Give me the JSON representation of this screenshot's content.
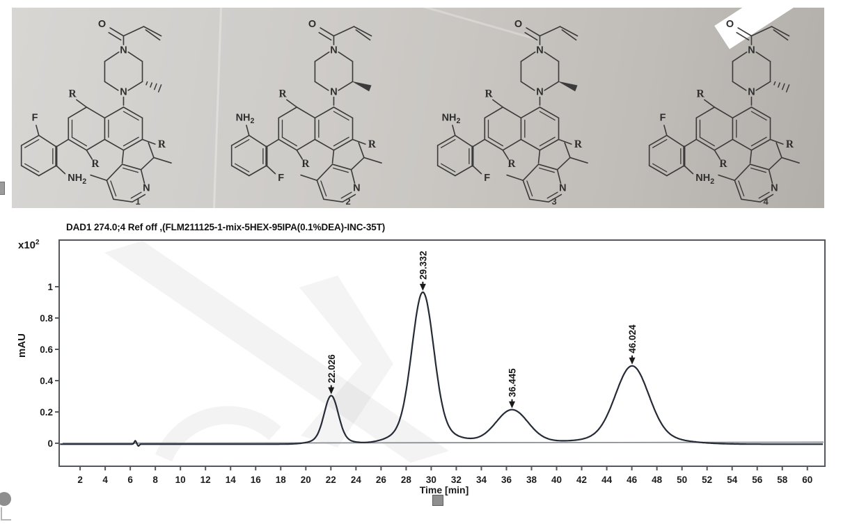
{
  "photo": {
    "atoms": {
      "oxygen": "O",
      "nitrogen": "N",
      "r_group": "R",
      "pyridine_n": "N"
    },
    "compounds": [
      {
        "label": "1",
        "top_substituent": "F",
        "bottom_substituent": "NH2",
        "methyl_stereo": "hash"
      },
      {
        "label": "2",
        "top_substituent": "NH2",
        "bottom_substituent": "F",
        "methyl_stereo": "wedge"
      },
      {
        "label": "3",
        "top_substituent": "NH2",
        "bottom_substituent": "F",
        "methyl_stereo": "wedge"
      },
      {
        "label": "4",
        "top_substituent": "F",
        "bottom_substituent": "NH2",
        "methyl_stereo": "hash"
      }
    ]
  },
  "chart_data": {
    "type": "line",
    "title": "DAD1 274.0;4 Ref off ,(FLM211125-1-mix-5HEX-95IPA(0.1%DEA)-INC-35T)",
    "y_multiplier": {
      "base": "x10",
      "exp": "2"
    },
    "ylabel": "mAU",
    "xlabel": "Time [min]",
    "xlim": [
      0.33,
      61.4
    ],
    "ylim": [
      -0.147,
      1.298
    ],
    "x_ticks": [
      2,
      4,
      6,
      8,
      10,
      12,
      14,
      16,
      18,
      20,
      22,
      24,
      26,
      28,
      30,
      32,
      34,
      36,
      38,
      40,
      42,
      44,
      46,
      48,
      50,
      52,
      54,
      56,
      58,
      60
    ],
    "y_ticks": [
      0,
      0.2,
      0.4,
      0.6,
      0.8,
      1
    ],
    "grid": false,
    "legend": null,
    "baseline_level": 0,
    "peaks": [
      {
        "rt_min": 22.026,
        "label": "22.026",
        "height_x100mAU": 0.31,
        "sigma_min": 0.55
      },
      {
        "rt_min": 29.332,
        "label": "29.332",
        "height_x100mAU": 0.97,
        "sigma_min": 0.85
      },
      {
        "rt_min": 36.445,
        "label": "36.445",
        "height_x100mAU": 0.22,
        "sigma_min": 1.25
      },
      {
        "rt_min": 46.024,
        "label": "46.024",
        "height_x100mAU": 0.5,
        "sigma_min": 1.3
      }
    ],
    "noise_blip": {
      "rt_min": 6.4,
      "height": 0.022,
      "sigma_min": 0.08
    },
    "curve_color": "#252b36",
    "baseline_color": "#8a8f96",
    "frame_color": "#54575c"
  }
}
